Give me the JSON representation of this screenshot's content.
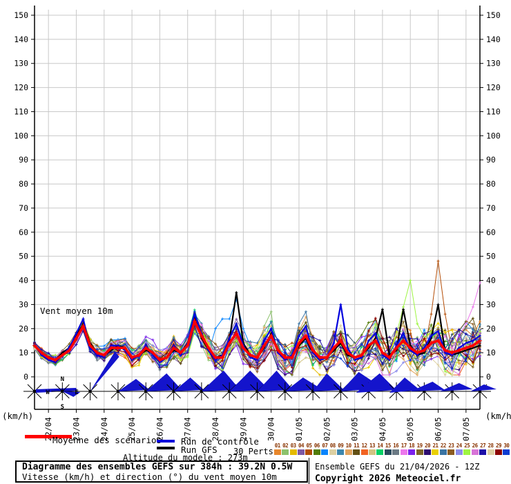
{
  "chart": {
    "in_plot_label": "Vent moyen 10m",
    "unit_bottom_left": "(km/h)",
    "unit_bottom_right": "(km/h)",
    "y_ticks": [
      0,
      10,
      20,
      30,
      40,
      50,
      60,
      70,
      80,
      90,
      100,
      110,
      120,
      130,
      140,
      150
    ],
    "x_labels": [
      "22/04",
      "23/04",
      "24/04",
      "25/04",
      "26/04",
      "27/04",
      "28/04",
      "29/04",
      "30/04",
      "01/05",
      "02/05",
      "03/05",
      "04/05",
      "05/05",
      "06/05",
      "07/05"
    ],
    "compass": {
      "n": "N",
      "e": "E",
      "s": "S",
      "w": "W"
    },
    "colors": {
      "grid": "#c8c8c8",
      "axis": "#000000",
      "arrow": "#1414cc",
      "mean": "#ff0000",
      "control": "#0000dd",
      "gfs": "#000000"
    }
  },
  "legend": {
    "mean_label": "Moyenne des scénarios",
    "control_label": "Run de contrôle",
    "gfs_label": "Run GFS",
    "perts_label": "30 Perts.",
    "altitude_note": "Altitude du modele : 273m"
  },
  "perts": {
    "numbers": [
      "01",
      "02",
      "03",
      "04",
      "05",
      "06",
      "07",
      "08",
      "09",
      "10",
      "11",
      "12",
      "13",
      "14",
      "15",
      "16",
      "17",
      "18",
      "19",
      "20",
      "21",
      "22",
      "23",
      "24",
      "25",
      "26",
      "27",
      "28",
      "29",
      "30"
    ],
    "colors": [
      "#e7862b",
      "#8cc16c",
      "#e4ba00",
      "#7d58a5",
      "#b34c05",
      "#527c08",
      "#0a85fd",
      "#ddd0a2",
      "#3d87ae",
      "#e3a45e",
      "#635014",
      "#f26322",
      "#d2c382",
      "#06d167",
      "#2b4a5e",
      "#6b7a85",
      "#ec77ec",
      "#7b22ec",
      "#7d6527",
      "#2d0d70",
      "#ead000",
      "#3a74a3",
      "#8c5c22",
      "#8d8dec",
      "#9ef542",
      "#d774d7",
      "#1d0fa8",
      "#ded1a5",
      "#8c0404",
      "#0c3cd2"
    ]
  },
  "footer": {
    "left_line1": "Diagramme des ensembles GEFS sur 384h : 39.2N 0.5W",
    "left_line2": "Vitesse (km/h) et direction (°) du vent moyen 10m",
    "right_line1": "Ensemble GEFS du 21/04/2026 - 12Z",
    "right_line2": "Copyright 2026 Meteociel.fr"
  },
  "chart_data": {
    "type": "line",
    "title": "Vent moyen 10m",
    "ylabel": "(km/h)",
    "ylim": [
      0,
      155
    ],
    "x_start": "21/04 12Z",
    "x_end": "07/05 12Z",
    "step_hours": 6,
    "n_points": 65,
    "x_gridline_labels": [
      "22/04",
      "23/04",
      "24/04",
      "25/04",
      "26/04",
      "27/04",
      "28/04",
      "29/04",
      "30/04",
      "01/05",
      "02/05",
      "03/05",
      "04/05",
      "05/05",
      "06/05",
      "07/05"
    ],
    "series": [
      {
        "name": "Moyenne des scénarios",
        "color": "#ff0000",
        "values": [
          13,
          10,
          8,
          7,
          9,
          11,
          16,
          21,
          13,
          10,
          9,
          12,
          12,
          12,
          8,
          9,
          12,
          10,
          7,
          8,
          12,
          10,
          13,
          23,
          17,
          12,
          8,
          8,
          14,
          18,
          12,
          9,
          8,
          13,
          17,
          11,
          8,
          8,
          14,
          17,
          11,
          8,
          8,
          12,
          15,
          10,
          8,
          9,
          13,
          15,
          10,
          8,
          12,
          15,
          12,
          10,
          11,
          14,
          15,
          11,
          10,
          11,
          12,
          13,
          15
        ]
      },
      {
        "name": "Run de contrôle",
        "color": "#0000dd",
        "values": [
          13,
          9,
          7,
          6,
          9,
          12,
          18,
          24,
          12,
          9,
          8,
          13,
          13,
          11,
          7,
          9,
          13,
          9,
          6,
          8,
          13,
          9,
          14,
          26,
          18,
          11,
          7,
          9,
          16,
          22,
          13,
          8,
          7,
          15,
          20,
          10,
          7,
          9,
          17,
          21,
          10,
          7,
          8,
          14,
          30,
          12,
          7,
          8,
          15,
          18,
          9,
          7,
          13,
          18,
          11,
          9,
          12,
          17,
          19,
          10,
          9,
          12,
          14,
          15,
          17
        ]
      },
      {
        "name": "Run GFS",
        "color": "#000000",
        "values": [
          13,
          10,
          8,
          7,
          10,
          12,
          17,
          22,
          14,
          10,
          9,
          11,
          13,
          12,
          8,
          9,
          11,
          10,
          7,
          8,
          11,
          10,
          14,
          25,
          16,
          11,
          8,
          9,
          15,
          35,
          14,
          9,
          8,
          12,
          18,
          10,
          8,
          8,
          13,
          16,
          10,
          7,
          8,
          11,
          14,
          9,
          8,
          9,
          12,
          16,
          28,
          9,
          11,
          28,
          13,
          9,
          10,
          16,
          30,
          10,
          9,
          10,
          11,
          12,
          13
        ]
      }
    ],
    "ensemble": {
      "count": 30,
      "note": "30 GEFS perturbation members drawn as thin lines around the mean; spread grows with lead time (±2 km/h early to ±12 km/h late, outliers to ~48 km/h)."
    },
    "member_spikes": {
      "2": {
        "33": 8,
        "34": 10
      },
      "5": {
        "57": 12,
        "58": 33,
        "59": 15
      },
      "7": {
        "26": 12,
        "27": 16,
        "28": 10,
        "29": 14,
        "30": 8
      },
      "17": {
        "62": 10,
        "63": 16,
        "64": 24
      },
      "22": {
        "38": 8,
        "39": 10
      },
      "25": {
        "53": 14,
        "54": 28,
        "55": 12
      }
    },
    "wind_arrows": [
      [
        [
          [
            2,
            -3
          ],
          [
            60,
            -5
          ],
          [
            62,
            -1
          ],
          [
            2,
            2
          ]
        ]
      ],
      [
        [
          [
            0,
            0
          ],
          [
            16,
            8
          ],
          [
            26,
            1
          ]
        ]
      ],
      [
        [
          [
            0,
            0
          ],
          [
            36,
            -58
          ],
          [
            42,
            -50
          ]
        ]
      ],
      [
        [
          [
            0,
            0
          ],
          [
            26,
            -18
          ],
          [
            46,
            -2
          ]
        ]
      ],
      [
        [
          [
            0,
            0
          ],
          [
            30,
            -26
          ],
          [
            52,
            -2
          ]
        ]
      ],
      [
        [
          [
            0,
            0
          ],
          [
            24,
            -20
          ],
          [
            44,
            -2
          ]
        ]
      ],
      [
        [
          [
            0,
            0
          ],
          [
            32,
            -30
          ],
          [
            56,
            -2
          ]
        ]
      ],
      [
        [
          [
            0,
            0
          ],
          [
            30,
            -30
          ],
          [
            58,
            -2
          ]
        ]
      ],
      [
        [
          [
            0,
            0
          ],
          [
            28,
            -30
          ],
          [
            52,
            -2
          ]
        ]
      ],
      [
        [
          [
            0,
            0
          ],
          [
            26,
            -20
          ],
          [
            55,
            -2
          ]
        ]
      ],
      [
        [
          [
            0,
            0
          ],
          [
            20,
            -26
          ],
          [
            45,
            -2
          ]
        ]
      ],
      [
        [
          [
            0,
            0
          ],
          [
            26,
            -28
          ],
          [
            62,
            -4
          ]
        ]
      ],
      [
        [
          [
            -18,
            2
          ],
          [
            16,
            -26
          ],
          [
            40,
            -2
          ]
        ]
      ],
      [
        [
          [
            -10,
            2
          ],
          [
            12,
            -20
          ],
          [
            34,
            -2
          ]
        ]
      ],
      [
        [
          [
            -20,
            0
          ],
          [
            12,
            -14
          ],
          [
            30,
            -2
          ]
        ]
      ],
      [
        [
          [
            -18,
            0
          ],
          [
            10,
            -12
          ],
          [
            30,
            -3
          ]
        ]
      ],
      [
        [
          [
            -14,
            0
          ],
          [
            6,
            -10
          ],
          [
            24,
            -3
          ]
        ]
      ]
    ]
  }
}
